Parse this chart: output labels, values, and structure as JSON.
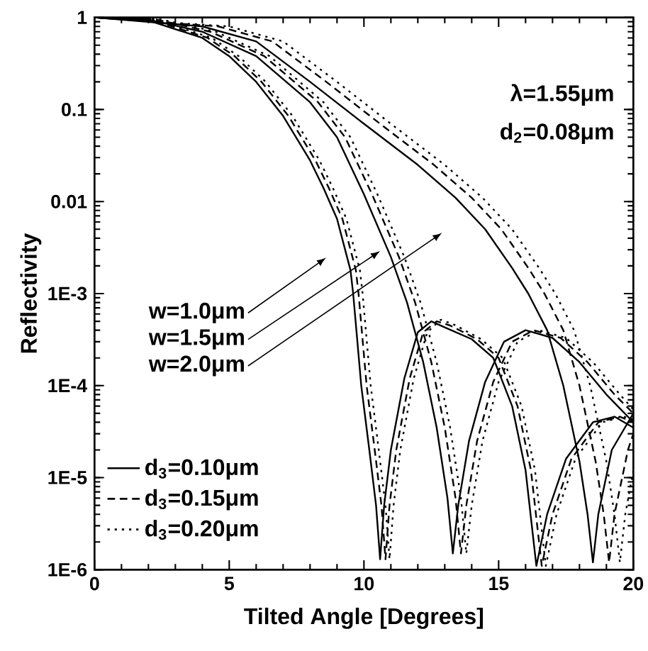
{
  "chart_data": {
    "type": "line",
    "xlabel": "Tilted Angle [Degrees]",
    "ylabel": "Reflectivity",
    "log": "y",
    "grid": false,
    "legend": "bottom left",
    "xlim": [
      0,
      20
    ],
    "xticks": [
      0,
      5,
      10,
      15,
      20
    ],
    "ylim": [
      1e-06,
      1
    ],
    "yticks": [
      {
        "value": 1e-06,
        "label": "1E-6"
      },
      {
        "value": 1e-05,
        "label": "1E-5"
      },
      {
        "value": 0.0001,
        "label": "1E-4"
      },
      {
        "value": 0.001,
        "label": "1E-3"
      },
      0.01,
      0.1,
      1
    ],
    "annotations": [
      "λ=1.55μm",
      "d$_{2}$=0.08μm",
      "w=1.0μm",
      "w=1.5μm",
      "w=2.0μm"
    ],
    "series": [
      {
        "name": "d$_{3}$=0.10μm",
        "color": "#000000",
        "line_style": "solid",
        "x": [
          0,
          2,
          4,
          5,
          6,
          7,
          8,
          8.5,
          9,
          9.5,
          9.6,
          9.9,
          10.2,
          10.45,
          10.6,
          10.75,
          11,
          11.5,
          12,
          12.5,
          13,
          14,
          14.8,
          15.5,
          16,
          16.4,
          16.8,
          17.5,
          18.5,
          19.3,
          20
        ],
        "values": [
          1,
          0.93,
          0.6,
          0.38,
          0.2,
          0.085,
          0.028,
          0.014,
          0.0065,
          0.0018,
          0.001,
          0.0001,
          2e-05,
          5e-06,
          1.3e-06,
          5e-06,
          2e-05,
          0.00012,
          0.00038,
          0.0005,
          0.00043,
          0.00032,
          0.0002,
          6e-05,
          1.2e-05,
          1.1e-06,
          4e-06,
          1.6e-05,
          4e-05,
          4.6e-05,
          3.5e-05
        ]
      },
      {
        "color": "#000000",
        "line_style": "solid",
        "x": [
          0,
          2,
          4,
          6,
          8,
          9,
          10,
          11,
          11.6,
          12.2,
          12.7,
          13.1,
          13.3,
          13.5,
          13.9,
          14.5,
          15.2,
          16,
          17,
          18,
          19,
          20
        ],
        "values": [
          1,
          0.95,
          0.7,
          0.38,
          0.12,
          0.05,
          0.012,
          0.0025,
          0.0008,
          0.00018,
          3.5e-05,
          6e-06,
          1.5e-06,
          5e-06,
          2.5e-05,
          0.00011,
          0.0003,
          0.0004,
          0.00033,
          0.00018,
          8e-05,
          4e-05
        ]
      },
      {
        "color": "#000000",
        "line_style": "solid",
        "x": [
          0,
          4,
          6,
          8,
          10,
          12,
          13.4,
          14.5,
          15.5,
          16.1,
          16.8,
          17.4,
          18,
          18.3,
          18.5,
          18.7,
          19.2,
          20
        ],
        "values": [
          1,
          0.8,
          0.55,
          0.2,
          0.07,
          0.025,
          0.011,
          0.005,
          0.0019,
          0.001,
          0.0004,
          0.0001,
          1.5e-05,
          4e-06,
          1.2e-06,
          4e-06,
          2e-05,
          5e-05
        ]
      },
      {
        "name": "d$_{3}$=0.15μm",
        "color": "#000000",
        "line_style": "dashed",
        "x": [
          0,
          2.2,
          4.2,
          5.2,
          6.2,
          7.2,
          8.2,
          8.7,
          9.2,
          9.7,
          9.8,
          10.1,
          10.4,
          10.65,
          10.8,
          10.95,
          11.2,
          11.7,
          12.2,
          12.7,
          13.2,
          14.2,
          15,
          15.7,
          16.2,
          16.6,
          17,
          17.7,
          18.7,
          19.5,
          20
        ],
        "values": [
          1,
          0.93,
          0.6,
          0.38,
          0.2,
          0.085,
          0.028,
          0.014,
          0.0065,
          0.0018,
          0.001,
          0.0001,
          2e-05,
          5e-06,
          1.3e-06,
          5e-06,
          2e-05,
          0.00012,
          0.00038,
          0.0005,
          0.00045,
          0.00032,
          0.0002,
          6e-05,
          1.2e-05,
          1.1e-06,
          4e-06,
          1.6e-05,
          4e-05,
          4.6e-05,
          4e-05
        ]
      },
      {
        "color": "#000000",
        "line_style": "dashed",
        "x": [
          0,
          2.3,
          4.3,
          6.3,
          8.3,
          9.3,
          10.3,
          11.3,
          11.9,
          12.5,
          13,
          13.4,
          13.6,
          13.8,
          14.2,
          14.8,
          15.5,
          16.3,
          17.3,
          18.3,
          19.3,
          20
        ],
        "values": [
          1,
          0.95,
          0.7,
          0.38,
          0.12,
          0.05,
          0.012,
          0.0025,
          0.0008,
          0.00018,
          3.5e-05,
          6e-06,
          1.5e-06,
          5e-06,
          2.5e-05,
          0.00011,
          0.0003,
          0.0004,
          0.00033,
          0.00018,
          8e-05,
          5e-05
        ]
      },
      {
        "color": "#000000",
        "line_style": "dashed",
        "x": [
          0,
          4.6,
          6.6,
          8.6,
          10.6,
          12.6,
          14,
          15.1,
          16.1,
          16.7,
          17.4,
          18,
          18.6,
          18.9,
          19.1,
          19.3,
          19.8,
          20
        ],
        "values": [
          1,
          0.8,
          0.55,
          0.2,
          0.07,
          0.025,
          0.011,
          0.005,
          0.0019,
          0.001,
          0.0004,
          0.0001,
          1.5e-05,
          4e-06,
          1.2e-06,
          4e-06,
          2e-05,
          3e-05
        ]
      },
      {
        "name": "d$_{3}$=0.20μm",
        "color": "#000000",
        "line_style": "dotted",
        "x": [
          0,
          2.35,
          4.35,
          5.35,
          6.35,
          7.35,
          8.35,
          8.85,
          9.35,
          9.85,
          9.95,
          10.25,
          10.55,
          10.8,
          10.95,
          11.1,
          11.35,
          11.85,
          12.35,
          12.85,
          13.35,
          14.35,
          15.15,
          15.85,
          16.35,
          16.75,
          17.15,
          17.85,
          18.85,
          19.65,
          20
        ],
        "values": [
          1,
          0.93,
          0.6,
          0.38,
          0.2,
          0.085,
          0.028,
          0.014,
          0.0065,
          0.0018,
          0.001,
          0.0001,
          2e-05,
          5e-06,
          1.3e-06,
          5e-06,
          2e-05,
          0.00012,
          0.00038,
          0.00052,
          0.00046,
          0.00032,
          0.0002,
          6e-05,
          1.2e-05,
          1.1e-06,
          4e-06,
          1.6e-05,
          4e-05,
          4.6e-05,
          4.3e-05
        ]
      },
      {
        "color": "#000000",
        "line_style": "dotted",
        "x": [
          0,
          2.5,
          4.5,
          6.5,
          8.5,
          9.5,
          10.5,
          11.5,
          12.1,
          12.7,
          13.2,
          13.6,
          13.8,
          14,
          14.4,
          15,
          15.7,
          16.5,
          17.5,
          18.5,
          19.5,
          20
        ],
        "values": [
          1,
          0.95,
          0.7,
          0.38,
          0.12,
          0.05,
          0.012,
          0.0025,
          0.0008,
          0.00018,
          3.5e-05,
          6e-06,
          1.5e-06,
          5e-06,
          2.5e-05,
          0.00011,
          0.0003,
          0.0004,
          0.00033,
          0.00018,
          8e-05,
          5.5e-05
        ]
      },
      {
        "color": "#000000",
        "line_style": "dotted",
        "x": [
          0,
          5,
          7,
          9,
          11,
          13,
          14.4,
          15.5,
          16.5,
          17.1,
          17.8,
          18.4,
          19,
          19.3,
          19.5,
          19.7,
          20
        ],
        "values": [
          1,
          0.8,
          0.55,
          0.2,
          0.07,
          0.025,
          0.011,
          0.005,
          0.0019,
          0.001,
          0.0004,
          0.0001,
          1.5e-05,
          4e-06,
          1.2e-06,
          4e-06,
          1.2e-05
        ]
      }
    ]
  }
}
